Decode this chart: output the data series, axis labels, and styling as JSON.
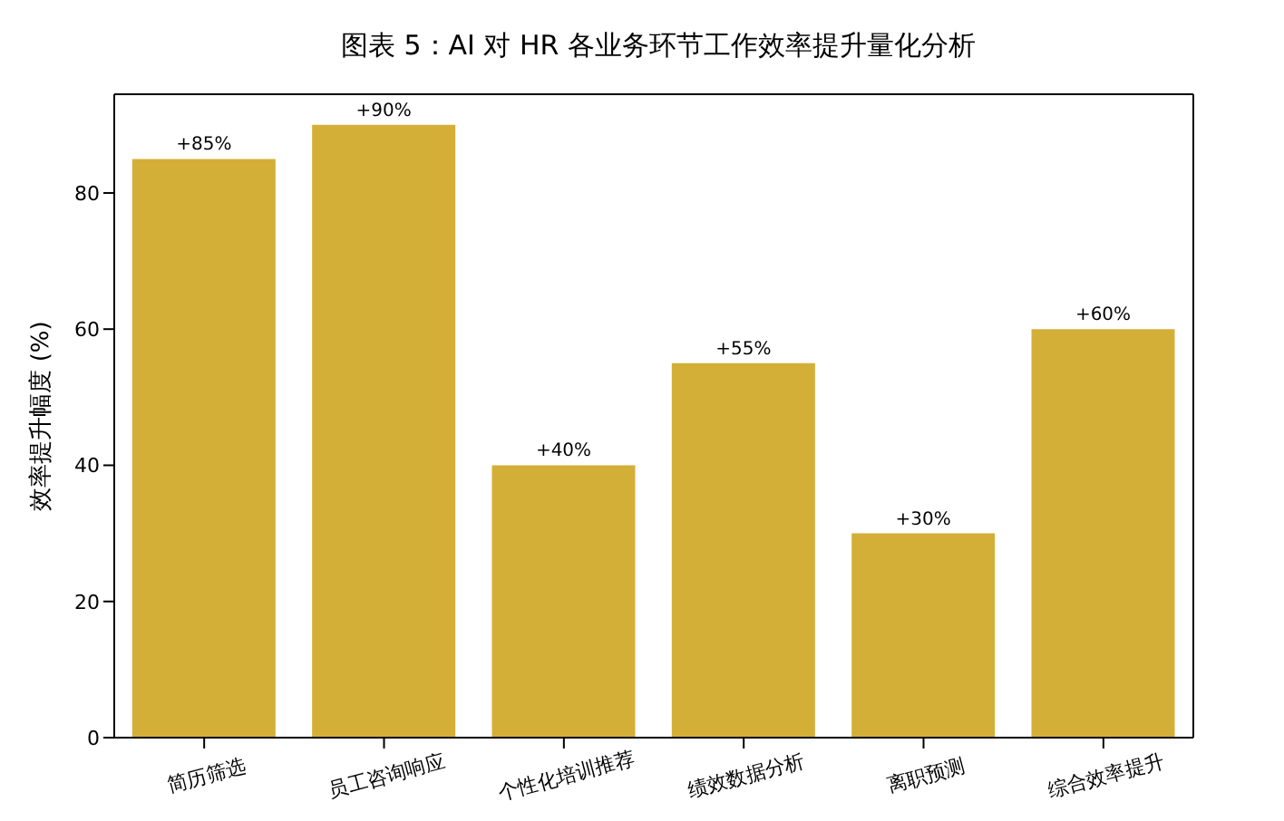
{
  "chart_data": {
    "type": "bar",
    "title": "图表 5：AI 对 HR 各业务环节工作效率提升量化分析",
    "ylabel": "效率提升幅度 (%)",
    "categories": [
      "简历筛选",
      "员工咨询响应",
      "个性化培训推荐",
      "绩效数据分析",
      "离职预测",
      "综合效率提升"
    ],
    "values": [
      85,
      90,
      40,
      55,
      30,
      60
    ],
    "value_labels": [
      "+85%",
      "+90%",
      "+40%",
      "+55%",
      "+30%",
      "+60%"
    ],
    "color": "#d4af37",
    "ylim": [
      0,
      94.5
    ],
    "yticks": [
      0,
      20,
      40,
      60,
      80
    ],
    "grid": false,
    "legend": false
  }
}
